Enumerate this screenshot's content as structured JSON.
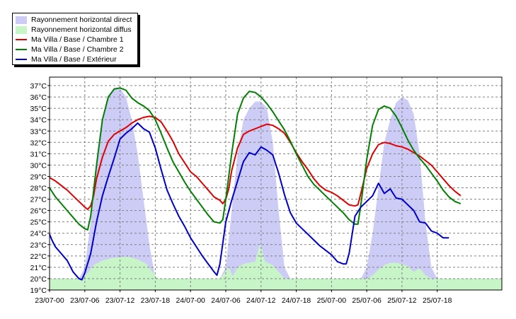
{
  "chart_data": {
    "type": "area",
    "x_ticks": [
      "23/07-00",
      "23/07-06",
      "23/07-12",
      "23/07-18",
      "24/07-00",
      "24/07-06",
      "24/07-12",
      "24/07-18",
      "25/07-00",
      "25/07-06",
      "25/07-12",
      "25/07-18"
    ],
    "y_ticks": [
      "19°C",
      "20°C",
      "21°C",
      "22°C",
      "23°C",
      "24°C",
      "25°C",
      "26°C",
      "27°C",
      "28°C",
      "29°C",
      "30°C",
      "31°C",
      "32°C",
      "33°C",
      "34°C",
      "35°C",
      "36°C",
      "37°C"
    ],
    "x_range_hours": [
      0,
      77
    ],
    "ylim": [
      19,
      37.75
    ],
    "grid": true,
    "legend_position": "top-left",
    "series": [
      {
        "name": "Rayonnement horizontal direct",
        "kind": "area",
        "color": "#ccccf7",
        "points": [
          [
            0,
            20
          ],
          [
            5,
            20
          ],
          [
            6,
            21
          ],
          [
            7,
            25
          ],
          [
            8,
            30
          ],
          [
            9,
            34
          ],
          [
            10,
            36
          ],
          [
            11,
            36.8
          ],
          [
            12,
            36.8
          ],
          [
            13,
            36
          ],
          [
            14,
            34
          ],
          [
            15,
            31
          ],
          [
            16,
            27
          ],
          [
            17,
            23
          ],
          [
            18,
            20
          ],
          [
            29,
            20
          ],
          [
            30,
            21
          ],
          [
            31,
            26
          ],
          [
            32,
            31
          ],
          [
            33,
            34
          ],
          [
            34,
            35
          ],
          [
            35,
            35.6
          ],
          [
            36,
            35.6
          ],
          [
            37,
            35
          ],
          [
            38,
            32
          ],
          [
            39,
            26
          ],
          [
            40,
            21
          ],
          [
            41,
            20
          ],
          [
            53,
            20
          ],
          [
            54,
            21
          ],
          [
            55,
            24
          ],
          [
            56,
            28
          ],
          [
            57,
            32
          ],
          [
            58,
            34
          ],
          [
            59,
            35.5
          ],
          [
            60,
            36
          ],
          [
            61,
            35.7
          ],
          [
            62,
            34.5
          ],
          [
            63,
            31
          ],
          [
            64,
            25
          ],
          [
            65,
            21
          ],
          [
            66,
            20
          ],
          [
            77,
            20
          ]
        ]
      },
      {
        "name": "Rayonnement horizontal diffus",
        "kind": "area",
        "color": "#c8f5c8",
        "points": [
          [
            0,
            20
          ],
          [
            5.5,
            20
          ],
          [
            6.5,
            20.5
          ],
          [
            7.5,
            21.2
          ],
          [
            9,
            21.6
          ],
          [
            10.5,
            21.8
          ],
          [
            12,
            21.9
          ],
          [
            13.5,
            21.9
          ],
          [
            15,
            21.7
          ],
          [
            16.5,
            21.3
          ],
          [
            17.5,
            20.6
          ],
          [
            18.5,
            20
          ],
          [
            29,
            20
          ],
          [
            29.5,
            20.3
          ],
          [
            30.5,
            21
          ],
          [
            31.2,
            20.2
          ],
          [
            32,
            21
          ],
          [
            33,
            21.3
          ],
          [
            34,
            21.4
          ],
          [
            35,
            21.5
          ],
          [
            35.8,
            23.1
          ],
          [
            36.7,
            21.5
          ],
          [
            38,
            21.2
          ],
          [
            39,
            20.6
          ],
          [
            40,
            20
          ],
          [
            53,
            20
          ],
          [
            54,
            20
          ],
          [
            55,
            20.3
          ],
          [
            56,
            20.8
          ],
          [
            57,
            21.2
          ],
          [
            58,
            21.4
          ],
          [
            59,
            21.4
          ],
          [
            60,
            21.3
          ],
          [
            61,
            21.1
          ],
          [
            62,
            20.6
          ],
          [
            63,
            20.9
          ],
          [
            64,
            20.3
          ],
          [
            65,
            20
          ],
          [
            77,
            20
          ]
        ]
      },
      {
        "name": "Ma Villa / Base / Chambre 1",
        "kind": "line",
        "color": "#e00000",
        "points": [
          [
            0,
            28.9
          ],
          [
            1,
            28.6
          ],
          [
            2,
            28.2
          ],
          [
            3,
            27.8
          ],
          [
            4,
            27.3
          ],
          [
            5,
            26.8
          ],
          [
            6,
            26.3
          ],
          [
            6.5,
            26.1
          ],
          [
            7,
            26.4
          ],
          [
            7.5,
            27.3
          ],
          [
            8,
            28.8
          ],
          [
            9,
            30.7
          ],
          [
            10,
            32.1
          ],
          [
            11,
            32.7
          ],
          [
            12,
            33
          ],
          [
            13,
            33.3
          ],
          [
            14,
            33.7
          ],
          [
            15,
            34
          ],
          [
            16,
            34.2
          ],
          [
            17,
            34.3
          ],
          [
            18,
            34.2
          ],
          [
            19,
            33.8
          ],
          [
            20,
            33
          ],
          [
            21,
            32.1
          ],
          [
            22,
            31
          ],
          [
            23,
            30.2
          ],
          [
            24,
            29.4
          ],
          [
            25,
            29
          ],
          [
            26,
            28.4
          ],
          [
            27,
            27.8
          ],
          [
            28,
            27.2
          ],
          [
            29,
            26.9
          ],
          [
            29.5,
            26.6
          ],
          [
            30,
            27
          ],
          [
            30.5,
            27.9
          ],
          [
            31,
            29.5
          ],
          [
            32,
            31.5
          ],
          [
            33,
            32.7
          ],
          [
            34,
            33
          ],
          [
            35,
            33.2
          ],
          [
            36,
            33.4
          ],
          [
            37,
            33.6
          ],
          [
            38,
            33.5
          ],
          [
            39,
            33.2
          ],
          [
            40,
            32.8
          ],
          [
            41,
            32
          ],
          [
            42,
            31.1
          ],
          [
            43,
            30.3
          ],
          [
            44,
            29.6
          ],
          [
            45,
            28.8
          ],
          [
            46,
            28.2
          ],
          [
            47,
            27.8
          ],
          [
            48,
            27.6
          ],
          [
            49,
            27.3
          ],
          [
            50,
            26.9
          ],
          [
            51,
            26.5
          ],
          [
            52,
            26.4
          ],
          [
            52.5,
            26.5
          ],
          [
            53,
            27.5
          ],
          [
            54,
            29.7
          ],
          [
            55,
            31
          ],
          [
            56,
            31.8
          ],
          [
            57,
            32
          ],
          [
            58,
            31.9
          ],
          [
            59,
            31.7
          ],
          [
            60,
            31.6
          ],
          [
            61,
            31.4
          ],
          [
            62,
            31.1
          ],
          [
            63,
            30.8
          ],
          [
            64,
            30.4
          ],
          [
            65,
            30
          ],
          [
            66,
            29.4
          ],
          [
            67,
            28.8
          ],
          [
            68,
            28.2
          ],
          [
            69,
            27.7
          ],
          [
            70,
            27.3
          ]
        ]
      },
      {
        "name": "Ma Villa / Base / Chambre 2",
        "kind": "line",
        "color": "#008000",
        "points": [
          [
            0,
            28
          ],
          [
            1,
            27.2
          ],
          [
            2,
            26.6
          ],
          [
            3,
            26
          ],
          [
            4,
            25.4
          ],
          [
            5,
            24.8
          ],
          [
            6,
            24.4
          ],
          [
            6.5,
            24.3
          ],
          [
            7,
            25.5
          ],
          [
            8,
            30
          ],
          [
            9,
            34
          ],
          [
            10,
            36
          ],
          [
            11,
            36.7
          ],
          [
            12,
            36.8
          ],
          [
            13,
            36.6
          ],
          [
            14,
            35.9
          ],
          [
            15,
            35.5
          ],
          [
            16,
            35.2
          ],
          [
            17,
            34.8
          ],
          [
            18,
            34
          ],
          [
            19,
            32.8
          ],
          [
            20,
            31.5
          ],
          [
            21,
            30.3
          ],
          [
            22,
            29.4
          ],
          [
            23,
            28.5
          ],
          [
            24,
            27.7
          ],
          [
            25,
            27
          ],
          [
            26,
            26.3
          ],
          [
            27,
            25.6
          ],
          [
            28,
            25
          ],
          [
            29,
            24.9
          ],
          [
            29.5,
            25.2
          ],
          [
            30,
            27
          ],
          [
            31,
            31
          ],
          [
            32,
            34.5
          ],
          [
            33,
            35.9
          ],
          [
            34,
            36.5
          ],
          [
            35,
            36.4
          ],
          [
            36,
            36
          ],
          [
            37,
            35.4
          ],
          [
            38,
            34.7
          ],
          [
            39,
            33.9
          ],
          [
            40,
            33.1
          ],
          [
            41,
            32.1
          ],
          [
            42,
            31
          ],
          [
            43,
            30
          ],
          [
            44,
            29
          ],
          [
            45,
            28.3
          ],
          [
            46,
            27.8
          ],
          [
            47,
            27.3
          ],
          [
            48,
            26.8
          ],
          [
            49,
            26.3
          ],
          [
            50,
            25.8
          ],
          [
            51,
            25.2
          ],
          [
            52,
            24.8
          ],
          [
            52.5,
            24.8
          ],
          [
            53,
            26.5
          ],
          [
            54,
            30.5
          ],
          [
            55,
            33.5
          ],
          [
            56,
            34.9
          ],
          [
            57,
            35.2
          ],
          [
            58,
            35
          ],
          [
            59,
            34.3
          ],
          [
            60,
            33.3
          ],
          [
            61,
            32.2
          ],
          [
            62,
            31.3
          ],
          [
            63,
            30.6
          ],
          [
            64,
            30
          ],
          [
            65,
            29.3
          ],
          [
            66,
            28.6
          ],
          [
            67,
            27.8
          ],
          [
            68,
            27.2
          ],
          [
            69,
            26.8
          ],
          [
            70,
            26.6
          ]
        ]
      },
      {
        "name": "Ma Villa / Base / Extérieur",
        "kind": "line",
        "color": "#0000cc",
        "points": [
          [
            0,
            23.9
          ],
          [
            0.5,
            23.3
          ],
          [
            1,
            22.8
          ],
          [
            2,
            22.2
          ],
          [
            3,
            21.6
          ],
          [
            4,
            20.6
          ],
          [
            5,
            20
          ],
          [
            5.5,
            19.9
          ],
          [
            6,
            20.5
          ],
          [
            7,
            22.2
          ],
          [
            8,
            25
          ],
          [
            9,
            27.3
          ],
          [
            10,
            29
          ],
          [
            11,
            30.6
          ],
          [
            12,
            32.3
          ],
          [
            13,
            32.8
          ],
          [
            14,
            33.2
          ],
          [
            15,
            33.7
          ],
          [
            16,
            33.2
          ],
          [
            17,
            32.9
          ],
          [
            18,
            31.5
          ],
          [
            19,
            29.6
          ],
          [
            20,
            27.8
          ],
          [
            21,
            26.6
          ],
          [
            22,
            25.5
          ],
          [
            23,
            24.6
          ],
          [
            24,
            23.6
          ],
          [
            25,
            22.8
          ],
          [
            26,
            22
          ],
          [
            27,
            21.3
          ],
          [
            28,
            20.6
          ],
          [
            28.5,
            20.3
          ],
          [
            29,
            21.3
          ],
          [
            30,
            25
          ],
          [
            31,
            26.9
          ],
          [
            32,
            28.6
          ],
          [
            33,
            30.3
          ],
          [
            34,
            31.1
          ],
          [
            35,
            30.9
          ],
          [
            36,
            31.6
          ],
          [
            37,
            31.3
          ],
          [
            38,
            30.9
          ],
          [
            39,
            29.3
          ],
          [
            40,
            27.4
          ],
          [
            41,
            25.8
          ],
          [
            42,
            24.9
          ],
          [
            43,
            24.4
          ],
          [
            44,
            23.9
          ],
          [
            45,
            23.4
          ],
          [
            46,
            22.9
          ],
          [
            47,
            22.5
          ],
          [
            48,
            22.1
          ],
          [
            49,
            21.5
          ],
          [
            50,
            21.3
          ],
          [
            50.5,
            21.3
          ],
          [
            51,
            22.2
          ],
          [
            52,
            25.5
          ],
          [
            53,
            26.3
          ],
          [
            54,
            26.8
          ],
          [
            55,
            27.3
          ],
          [
            56,
            28.4
          ],
          [
            57,
            27.5
          ],
          [
            58,
            27.9
          ],
          [
            59,
            27.1
          ],
          [
            60,
            27
          ],
          [
            61,
            26.5
          ],
          [
            62,
            26
          ],
          [
            63,
            25
          ],
          [
            64,
            24.9
          ],
          [
            65,
            24.2
          ],
          [
            66,
            24
          ],
          [
            67,
            23.6
          ],
          [
            68,
            23.6
          ]
        ]
      }
    ]
  }
}
